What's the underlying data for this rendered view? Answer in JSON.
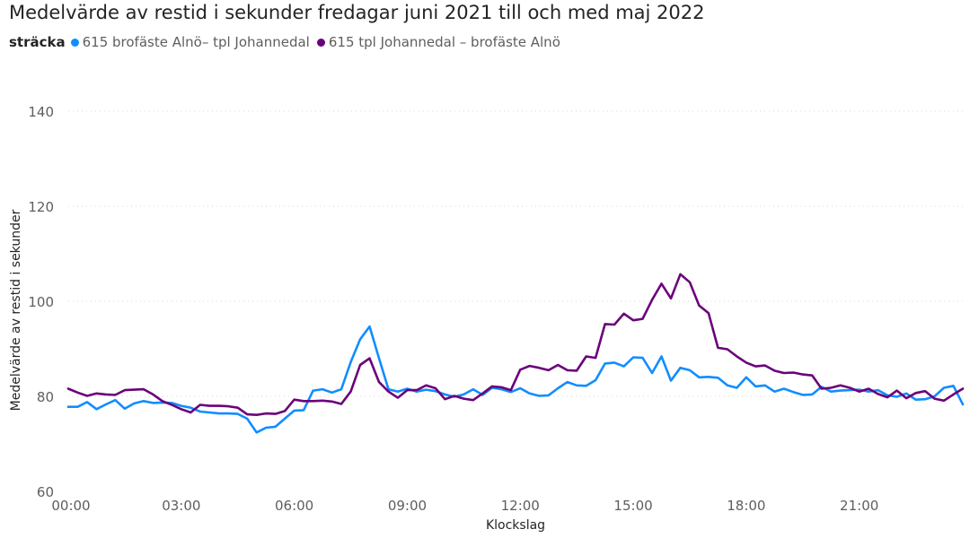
{
  "chart_data": {
    "type": "line",
    "title": "Medelvärde av restid i sekunder fredagar juni 2021 till och med maj 2022",
    "legend_title": "sträcka",
    "xlabel": "Klockslag",
    "ylabel": "Medelvärde av restid i sekunder",
    "ylim": [
      60,
      140
    ],
    "yticks": [
      60,
      80,
      100,
      120,
      140
    ],
    "xlim": [
      0,
      23.75
    ],
    "xticks": [
      {
        "value": 0,
        "label": "00:00"
      },
      {
        "value": 3,
        "label": "03:00"
      },
      {
        "value": 6,
        "label": "06:00"
      },
      {
        "value": 9,
        "label": "09:00"
      },
      {
        "value": 12,
        "label": "12:00"
      },
      {
        "value": 15,
        "label": "15:00"
      },
      {
        "value": 18,
        "label": "18:00"
      },
      {
        "value": 21,
        "label": "21:00"
      }
    ],
    "grid": true,
    "legend_position": "top-left",
    "x_step_hours": 0.25,
    "series": [
      {
        "name": "615 brofäste Alnö– tpl Johannedal",
        "color": "#118DFF",
        "values": [
          77.8,
          77.8,
          78.8,
          77.3,
          78.3,
          79.2,
          77.4,
          78.5,
          79.0,
          78.6,
          78.7,
          78.6,
          78.0,
          77.6,
          76.8,
          76.6,
          76.4,
          76.4,
          76.3,
          75.3,
          72.4,
          73.4,
          73.6,
          75.3,
          77.0,
          77.1,
          81.2,
          81.5,
          80.8,
          81.5,
          87.2,
          92.0,
          94.7,
          88.0,
          81.5,
          81.0,
          81.6,
          81.0,
          81.4,
          81.1,
          80.4,
          79.9,
          80.4,
          81.5,
          80.3,
          81.8,
          81.5,
          80.9,
          81.7,
          80.6,
          80.1,
          80.2,
          81.7,
          83.0,
          82.3,
          82.2,
          83.4,
          86.9,
          87.1,
          86.3,
          88.2,
          88.1,
          84.9,
          88.4,
          83.3,
          86.0,
          85.5,
          84.0,
          84.1,
          83.9,
          82.3,
          81.8,
          84.0,
          82.1,
          82.3,
          81.0,
          81.6,
          80.9,
          80.3,
          80.4,
          82.0,
          81.0,
          81.2,
          81.3,
          81.4,
          81.0,
          81.3,
          80.2,
          79.9,
          80.6,
          79.3,
          79.4,
          80.0,
          81.8,
          82.2,
          78.3
        ]
      },
      {
        "name": "615 tpl Johannedal – brofäste Alnö",
        "color": "#6B007B",
        "values": [
          81.6,
          80.8,
          80.1,
          80.6,
          80.4,
          80.3,
          81.3,
          81.4,
          81.5,
          80.4,
          79.0,
          78.2,
          77.3,
          76.6,
          78.2,
          78.0,
          78.0,
          77.9,
          77.6,
          76.2,
          76.1,
          76.4,
          76.3,
          76.9,
          79.3,
          79.0,
          79.0,
          79.1,
          78.9,
          78.4,
          81.0,
          86.6,
          88.0,
          83.0,
          81.0,
          79.7,
          81.3,
          81.3,
          82.3,
          81.7,
          79.4,
          80.1,
          79.5,
          79.2,
          80.6,
          82.1,
          81.9,
          81.3,
          85.6,
          86.4,
          86.0,
          85.5,
          86.6,
          85.5,
          85.4,
          88.4,
          88.1,
          95.2,
          95.1,
          97.4,
          96.0,
          96.3,
          100.3,
          103.7,
          100.6,
          105.7,
          104.0,
          99.1,
          97.5,
          90.2,
          89.9,
          88.4,
          87.1,
          86.3,
          86.5,
          85.4,
          84.9,
          85.0,
          84.6,
          84.4,
          81.6,
          81.8,
          82.3,
          81.8,
          81.0,
          81.6,
          80.5,
          79.8,
          81.2,
          79.6,
          80.7,
          81.1,
          79.5,
          79.1,
          80.4,
          81.6
        ]
      }
    ]
  }
}
